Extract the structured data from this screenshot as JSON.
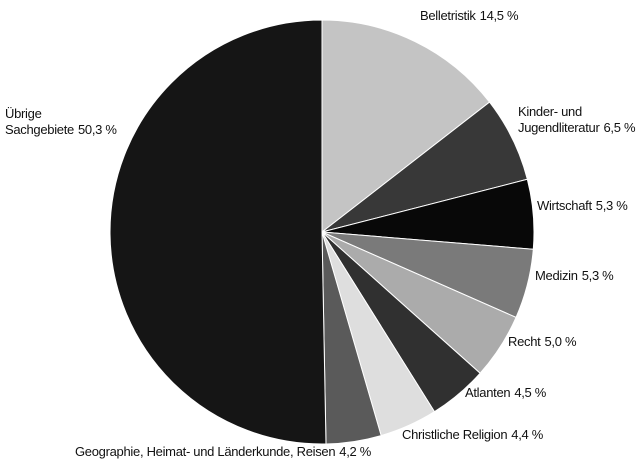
{
  "chart_data": {
    "type": "pie",
    "categories": [
      "Belletristik",
      "Kinder- und Jugendliteratur",
      "Wirtschaft",
      "Medizin",
      "Recht",
      "Atlanten",
      "Christliche Religion",
      "Geographie, Heimat- und Länderkunde, Reisen",
      "Übrige Sachgebiete"
    ],
    "values": [
      14.5,
      6.5,
      5.3,
      5.3,
      5.0,
      4.5,
      4.4,
      4.2,
      50.3
    ],
    "value_labels": [
      "14,5 %",
      "6,5 %",
      "5,3 %",
      "5,3 %",
      "5,0 %",
      "4,5 %",
      "4,4 %",
      "4,2 %",
      "50,3 %"
    ],
    "colors": [
      "#c4c4c4",
      "#383838",
      "#080808",
      "#7a7a7a",
      "#ababab",
      "#303030",
      "#dedede",
      "#5a5a5a",
      "#151515"
    ]
  }
}
